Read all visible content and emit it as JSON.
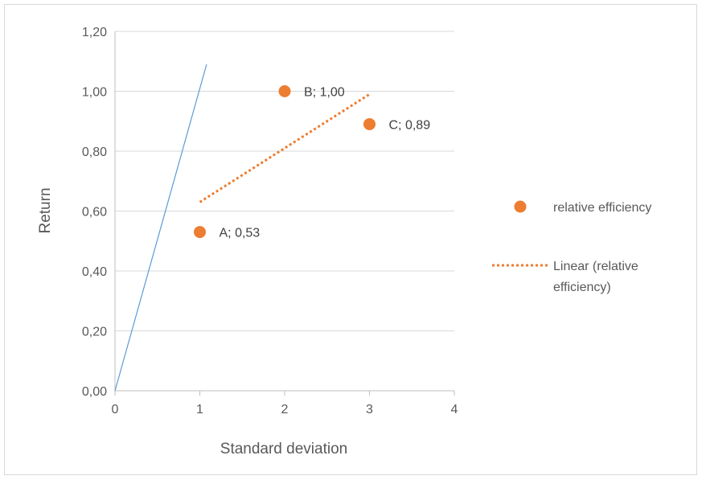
{
  "chart_data": {
    "type": "scatter",
    "xlabel": "Standard deviation",
    "ylabel": "Return",
    "xlim": [
      0,
      4
    ],
    "ylim": [
      0,
      1.2
    ],
    "x_ticks": [
      "0",
      "1",
      "2",
      "3",
      "4"
    ],
    "y_ticks": [
      "0,00",
      "0,20",
      "0,40",
      "0,60",
      "0,80",
      "1,00",
      "1,20"
    ],
    "grid": "horizontal",
    "legend_position": "right",
    "series": [
      {
        "name": "relative efficiency",
        "color": "#ed7d31",
        "points": [
          {
            "x": 1,
            "y": 0.53,
            "label": "A; 0,53"
          },
          {
            "x": 2,
            "y": 1.0,
            "label": "B; 1,00"
          },
          {
            "x": 3,
            "y": 0.89,
            "label": "C; 0,89"
          }
        ]
      }
    ],
    "trendline": {
      "name": "Linear (relative efficiency)",
      "name_lines": [
        "Linear (relative",
        "efficiency)"
      ],
      "color": "#ed7d31",
      "style": "dotted",
      "from": {
        "x": 1,
        "y": 0.63
      },
      "to": {
        "x": 3,
        "y": 0.99
      }
    },
    "reference_line": {
      "color": "#5b9bd5",
      "from": {
        "x": 0,
        "y": 0
      },
      "to": {
        "x": 1.08,
        "y": 1.09
      }
    }
  }
}
